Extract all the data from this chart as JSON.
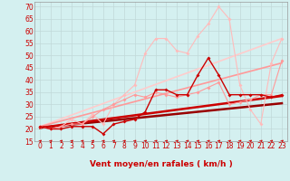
{
  "title": "",
  "xlabel": "Vent moyen/en rafales ( km/h )",
  "background_color": "#d4f0f0",
  "grid_color": "#c0d8d8",
  "xlim": [
    -0.5,
    23.5
  ],
  "ylim": [
    15,
    72
  ],
  "yticks": [
    15,
    20,
    25,
    30,
    35,
    40,
    45,
    50,
    55,
    60,
    65,
    70
  ],
  "xticks": [
    0,
    1,
    2,
    3,
    4,
    5,
    6,
    7,
    8,
    9,
    10,
    11,
    12,
    13,
    14,
    15,
    16,
    17,
    18,
    19,
    20,
    21,
    22,
    23
  ],
  "line1_x": [
    0,
    1,
    2,
    3,
    4,
    5,
    6,
    7,
    8,
    9,
    10,
    11,
    12,
    13,
    14,
    15,
    16,
    17,
    18,
    19,
    20,
    21,
    22,
    23
  ],
  "line1_y": [
    21,
    20,
    20,
    21,
    21,
    21,
    18,
    22,
    23,
    24,
    27,
    36,
    36,
    34,
    34,
    42,
    49,
    42,
    34,
    34,
    34,
    34,
    33,
    34
  ],
  "line1_color": "#cc0000",
  "line2_x": [
    0,
    1,
    2,
    3,
    4,
    5,
    6,
    7,
    8,
    9,
    10,
    11,
    12,
    13,
    14,
    15,
    16,
    17,
    18,
    19,
    20,
    21,
    22,
    23
  ],
  "line2_y": [
    21,
    20,
    21,
    22,
    22,
    25,
    28,
    30,
    32,
    34,
    33,
    35,
    34,
    33,
    34,
    35,
    37,
    39,
    30,
    31,
    32,
    34,
    34,
    48
  ],
  "line2_color": "#ff9999",
  "line3_x": [
    0,
    1,
    2,
    3,
    4,
    5,
    6,
    7,
    8,
    9,
    10,
    11,
    12,
    13,
    14,
    15,
    16,
    17,
    18,
    19,
    20,
    21,
    22,
    23
  ],
  "line3_y": [
    21,
    20,
    21,
    24,
    22,
    26,
    22,
    30,
    34,
    38,
    51,
    57,
    57,
    52,
    51,
    58,
    63,
    70,
    65,
    38,
    28,
    22,
    47,
    57
  ],
  "line3_color": "#ffbbbb",
  "trend1_x": [
    0,
    23
  ],
  "trend1_y": [
    20.5,
    33.5
  ],
  "trend1_color": "#cc0000",
  "trend1_lw": 1.8,
  "trend2_x": [
    0,
    23
  ],
  "trend2_y": [
    20.5,
    30.5
  ],
  "trend2_color": "#990000",
  "trend2_lw": 1.8,
  "trend3_x": [
    0,
    23
  ],
  "trend3_y": [
    21,
    47
  ],
  "trend3_color": "#ff9999",
  "trend3_lw": 1.2,
  "trend4_x": [
    0,
    23
  ],
  "trend4_y": [
    21,
    57
  ],
  "trend4_color": "#ffcccc",
  "trend4_lw": 1.2,
  "tick_label_color": "#cc0000",
  "xlabel_color": "#cc0000",
  "xlabel_fontsize": 6.5,
  "tick_fontsize": 5.5
}
